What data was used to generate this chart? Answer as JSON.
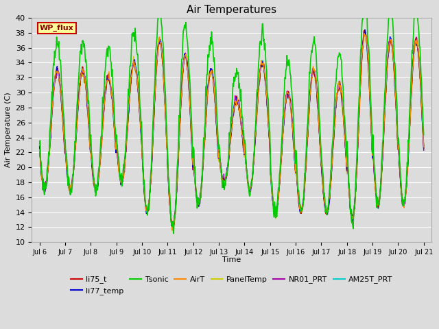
{
  "title": "Air Temperatures",
  "xlabel": "Time",
  "ylabel": "Air Temperature (C)",
  "ylim": [
    10,
    40
  ],
  "x_tick_labels": [
    "Jul 6",
    "Jul 7",
    "Jul 8",
    "Jul 9",
    "Jul 10",
    "Jul 11",
    "Jul 12",
    "Jul 13",
    "Jul 14",
    "Jul 15",
    "Jul 16",
    "Jul 17",
    "Jul 18",
    "Jul 19",
    "Jul 20",
    "Jul 21"
  ],
  "yticks": [
    10,
    12,
    14,
    16,
    18,
    20,
    22,
    24,
    26,
    28,
    30,
    32,
    34,
    36,
    38,
    40
  ],
  "plot_bg_color": "#dcdcdc",
  "fig_bg_color": "#dcdcdc",
  "grid_color": "#ffffff",
  "series": [
    {
      "name": "li75_t",
      "color": "#cc0000",
      "lw": 1.0,
      "zorder": 5
    },
    {
      "name": "li77_temp",
      "color": "#0000cc",
      "lw": 1.0,
      "zorder": 5
    },
    {
      "name": "Tsonic",
      "color": "#00cc00",
      "lw": 1.2,
      "zorder": 6
    },
    {
      "name": "AirT",
      "color": "#ff8800",
      "lw": 1.0,
      "zorder": 5
    },
    {
      "name": "PanelTemp",
      "color": "#cccc00",
      "lw": 1.0,
      "zorder": 4
    },
    {
      "name": "NR01_PRT",
      "color": "#aa00aa",
      "lw": 1.0,
      "zorder": 4
    },
    {
      "name": "AM25T_PRT",
      "color": "#00cccc",
      "lw": 1.2,
      "zorder": 3
    }
  ],
  "annotation_box": {
    "text": "WP_flux",
    "facecolor": "#ffff99",
    "edgecolor": "#cc0000",
    "textcolor": "#880000",
    "fontsize": 8,
    "fontweight": "bold"
  },
  "legend_fontsize": 8,
  "title_fontsize": 11,
  "day_mins": [
    17,
    17,
    17,
    18,
    14,
    12,
    15,
    18,
    17,
    14,
    14,
    14,
    13,
    15,
    15
  ],
  "day_maxes": [
    33,
    33,
    32,
    34,
    37,
    35,
    33,
    29,
    34,
    30,
    33,
    31,
    38,
    37,
    37
  ],
  "tsonic_extra_min": 0,
  "tsonic_extra_max": 4,
  "n_days": 15,
  "pts_per_day": 48
}
